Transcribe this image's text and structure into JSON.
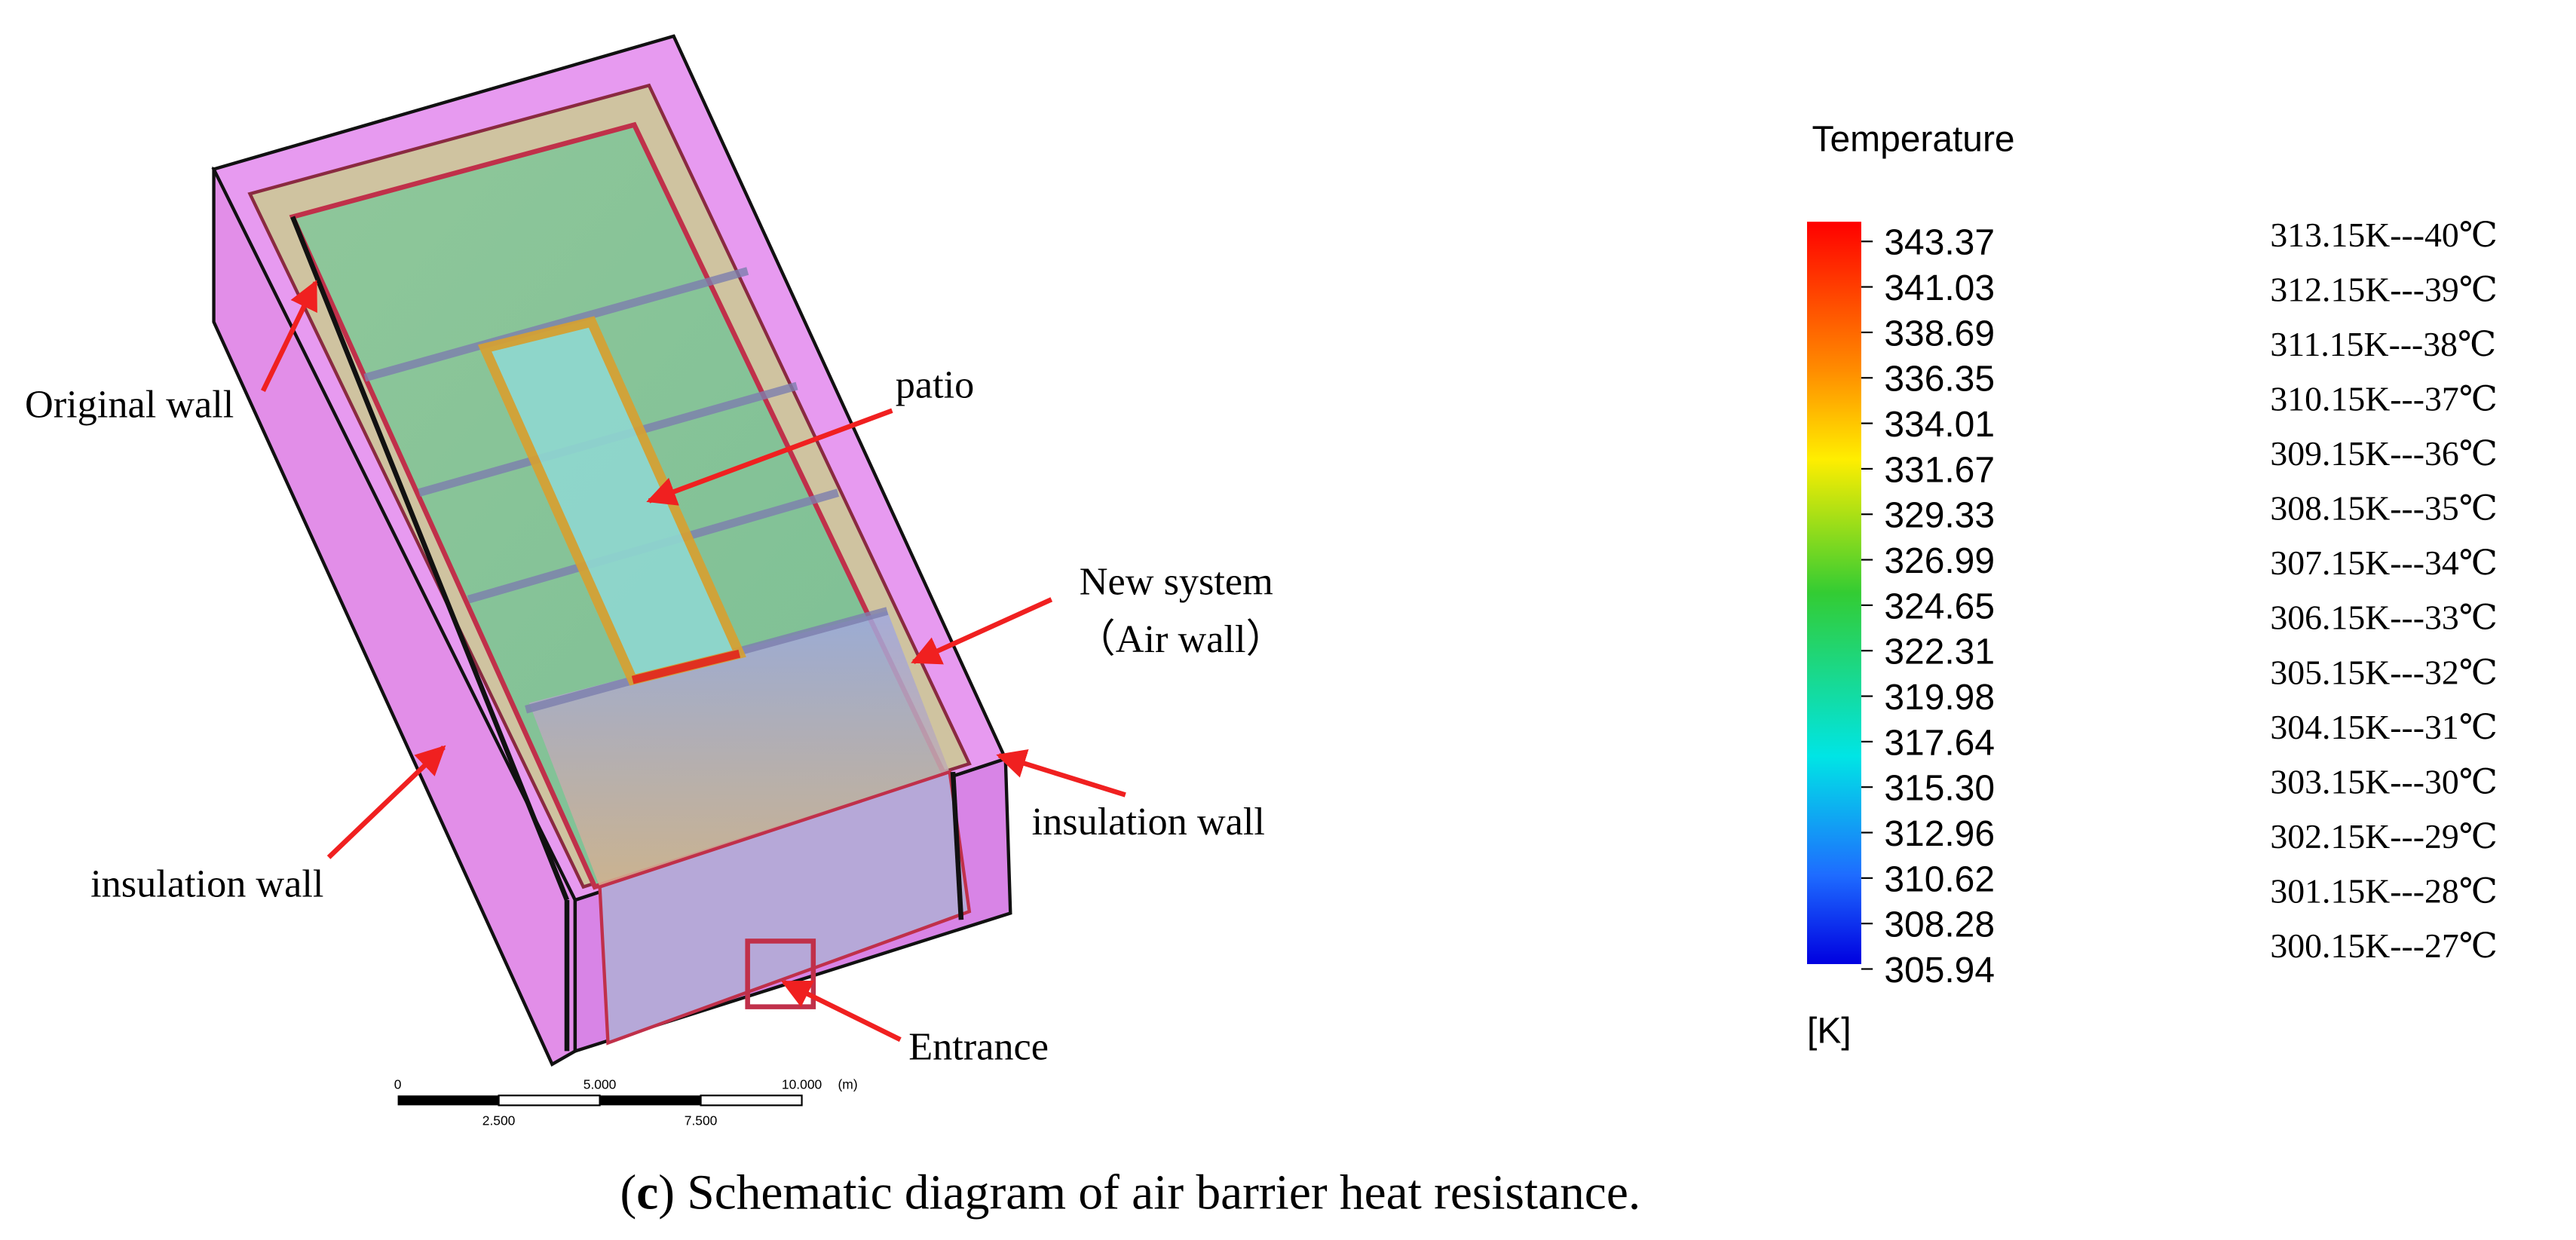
{
  "annotations": {
    "original_wall": "Original wall",
    "patio": "patio",
    "new_system": "New system",
    "air_wall": "（Air wall）",
    "insulation_wall_right": "insulation wall",
    "insulation_wall_left": "insulation wall",
    "entrance": "Entrance"
  },
  "scale_bar": {
    "top_labels": [
      "0",
      "5.000",
      "10.000",
      "(m)"
    ],
    "bottom_labels": [
      "2.500",
      "7.500"
    ]
  },
  "legend": {
    "title": "Temperature",
    "ticks": [
      "343.37",
      "341.03",
      "338.69",
      "336.35",
      "334.01",
      "331.67",
      "329.33",
      "326.99",
      "324.65",
      "322.31",
      "319.98",
      "317.64",
      "315.30",
      "312.96",
      "310.62",
      "308.28",
      "305.94"
    ],
    "unit": "[K]"
  },
  "conversions": [
    "313.15K---40℃",
    "312.15K---39℃",
    "311.15K---38℃",
    "310.15K---37℃",
    "309.15K---36℃",
    "308.15K---35℃",
    "307.15K---34℃",
    "306.15K---33℃",
    "305.15K---32℃",
    "304.15K---31℃",
    "303.15K---30℃",
    "302.15K---29℃",
    "301.15K---28℃",
    "300.15K---27℃"
  ],
  "caption": {
    "open": "(",
    "label": "c",
    "text": ") Schematic diagram of air barrier heat resistance."
  }
}
